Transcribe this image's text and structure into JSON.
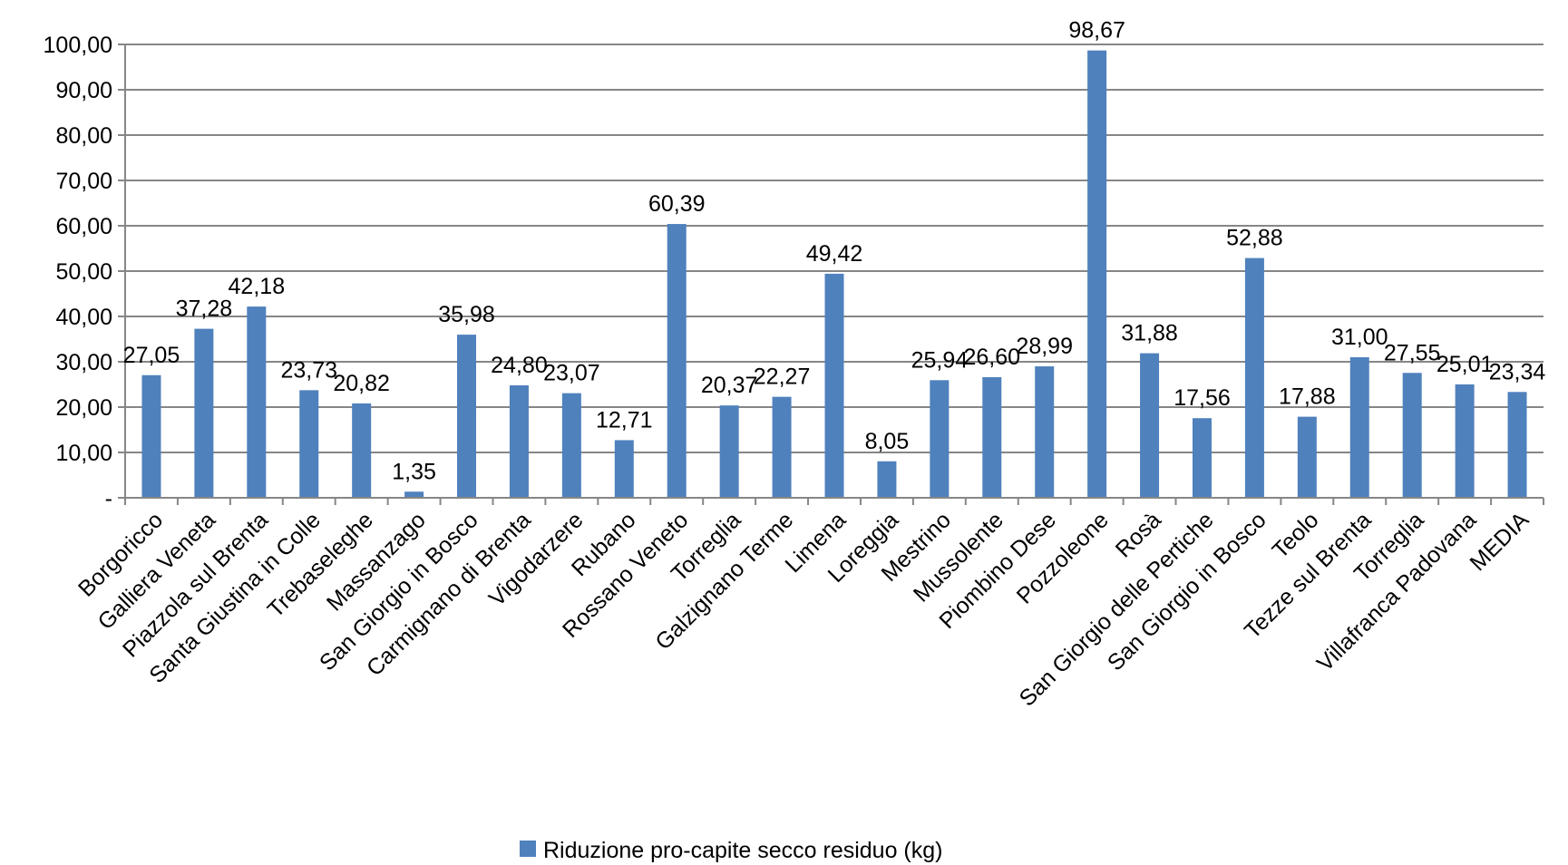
{
  "chart_data": {
    "type": "bar",
    "categories": [
      "Borgoricco",
      "Galliera Veneta",
      "Piazzola sul Brenta",
      "Santa Giustina in Colle",
      "Trebaseleghe",
      "Massanzago",
      "San Giorgio in Bosco",
      "Carmignano di Brenta",
      "Vigodarzere",
      "Rubano",
      "Rossano Veneto",
      "Torreglia",
      "Galzignano Terme",
      "Limena",
      "Loreggia",
      "Mestrino",
      "Mussolente",
      "Piombino Dese",
      "Pozzoleone",
      "Rosà",
      "San Giorgio delle Pertiche",
      "San Giorgio in Bosco",
      "Teolo",
      "Tezze sul Brenta",
      "Torreglia",
      "Villafranca Padovana",
      "MEDIA"
    ],
    "series": [
      {
        "name": "Riduzione pro-capite secco residuo (kg)",
        "values": [
          27.05,
          37.28,
          42.18,
          23.73,
          20.82,
          1.35,
          35.98,
          24.8,
          23.07,
          12.71,
          60.39,
          20.37,
          22.27,
          49.42,
          8.05,
          25.94,
          26.6,
          28.99,
          98.67,
          31.88,
          17.56,
          52.88,
          17.88,
          31.0,
          27.55,
          25.01,
          23.34
        ],
        "labels": [
          "27,05",
          "37,28",
          "42,18",
          "23,73",
          "20,82",
          "1,35",
          "35,98",
          "24,80",
          "23,07",
          "12,71",
          "60,39",
          "20,37",
          "22,27",
          "49,42",
          "8,05",
          "25,94",
          "26,60",
          "28,99",
          "98,67",
          "31,88",
          "17,56",
          "52,88",
          "17,88",
          "31,00",
          "27,55",
          "25,01",
          "23,34"
        ],
        "color": "#4f81bd"
      }
    ],
    "yticks": [
      0,
      10,
      20,
      30,
      40,
      50,
      60,
      70,
      80,
      90,
      100
    ],
    "ytick_labels": [
      "-",
      "10,00",
      "20,00",
      "30,00",
      "40,00",
      "50,00",
      "60,00",
      "70,00",
      "80,00",
      "90,00",
      "100,00"
    ],
    "ylim": [
      0,
      100
    ],
    "grid": true,
    "legend_position": "bottom",
    "gridline_color": "#868686"
  }
}
